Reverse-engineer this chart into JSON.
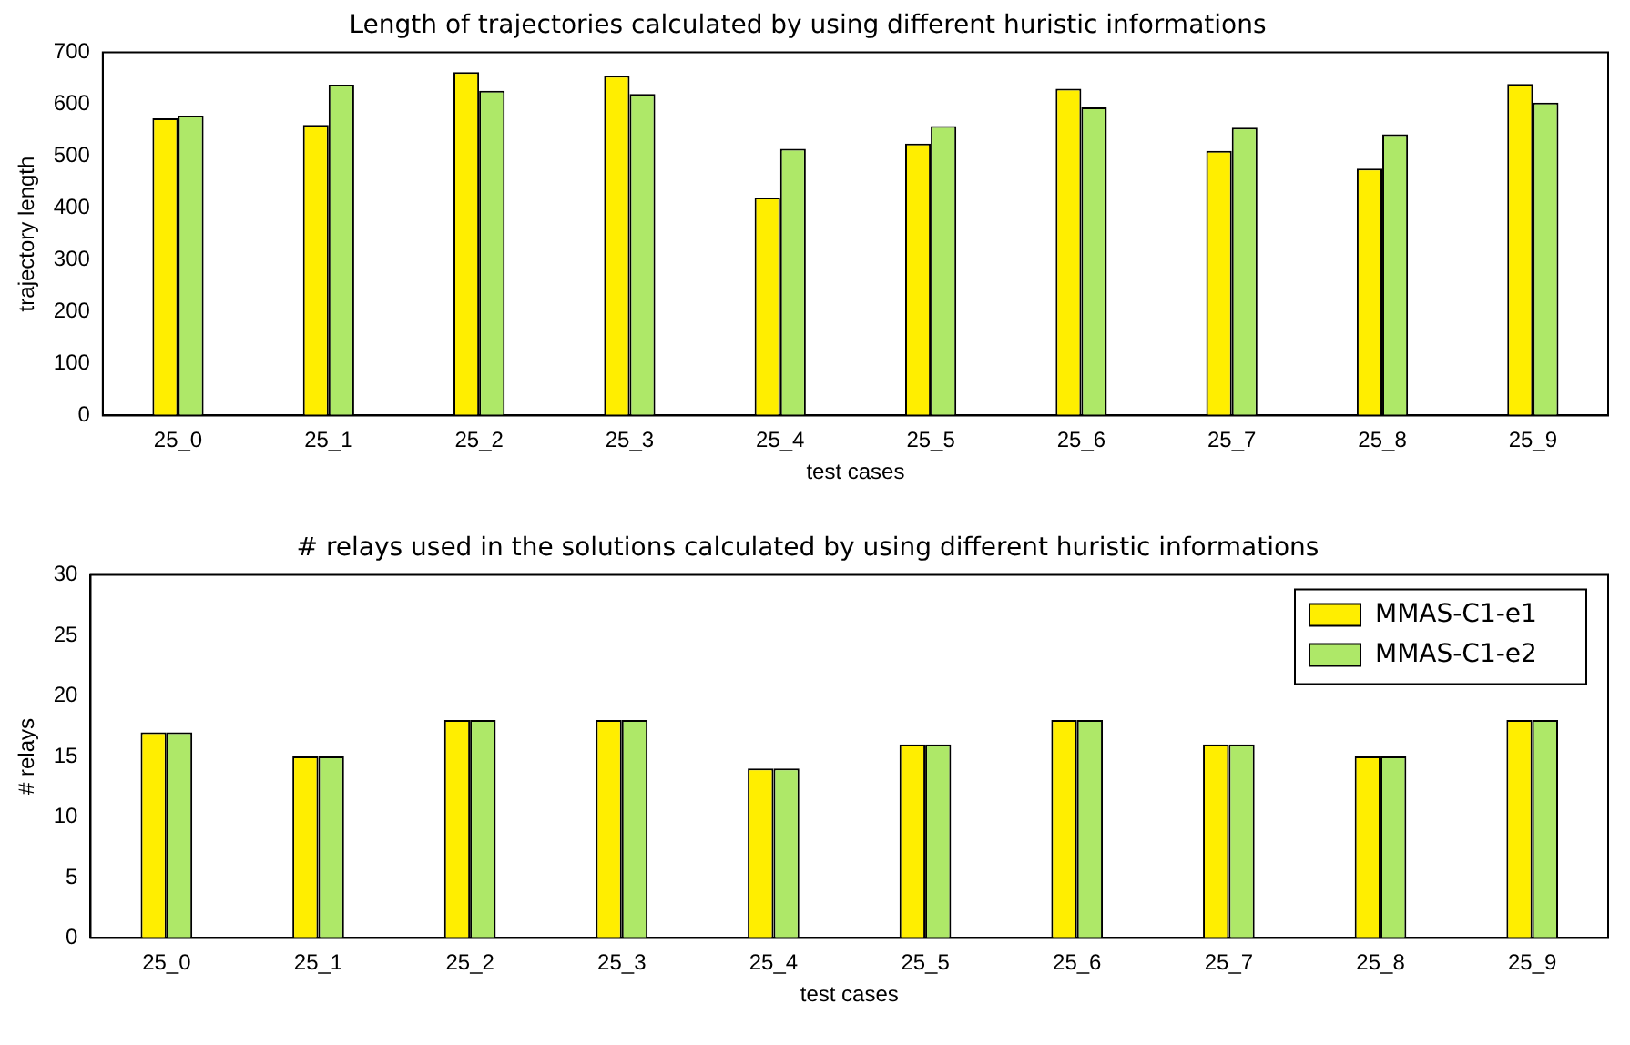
{
  "chart_data": [
    {
      "type": "bar",
      "title": "Length of trajectories calculated by using different huristic informations",
      "xlabel": "test cases",
      "ylabel": "trajectory length",
      "categories": [
        "25_0",
        "25_1",
        "25_2",
        "25_3",
        "25_4",
        "25_5",
        "25_6",
        "25_7",
        "25_8",
        "25_9"
      ],
      "series": [
        {
          "color": "#ffee00",
          "values": [
            573,
            560,
            662,
            655,
            420,
            524,
            630,
            510,
            476,
            639
          ]
        },
        {
          "color": "#aee868",
          "values": [
            578,
            638,
            626,
            620,
            514,
            558,
            594,
            555,
            542,
            603
          ]
        }
      ],
      "ylim": [
        0,
        700
      ],
      "yticks": [
        0,
        100,
        200,
        300,
        400,
        500,
        600,
        700
      ],
      "grid": false,
      "legend": false
    },
    {
      "type": "bar",
      "title": "# relays used in the solutions calculated by using different huristic informations",
      "xlabel": "test cases",
      "ylabel": "# relays",
      "categories": [
        "25_0",
        "25_1",
        "25_2",
        "25_3",
        "25_4",
        "25_5",
        "25_6",
        "25_7",
        "25_8",
        "25_9"
      ],
      "series": [
        {
          "name": "MMAS-C1-e1",
          "color": "#ffee00",
          "values": [
            17,
            15,
            18,
            18,
            14,
            16,
            18,
            16,
            15,
            18
          ]
        },
        {
          "name": "MMAS-C1-e2",
          "color": "#aee868",
          "values": [
            17,
            15,
            18,
            18,
            14,
            16,
            18,
            16,
            15,
            18
          ]
        }
      ],
      "ylim": [
        0,
        30
      ],
      "yticks": [
        0,
        5,
        10,
        15,
        20,
        25,
        30
      ],
      "grid": false,
      "legend": "top right"
    }
  ]
}
